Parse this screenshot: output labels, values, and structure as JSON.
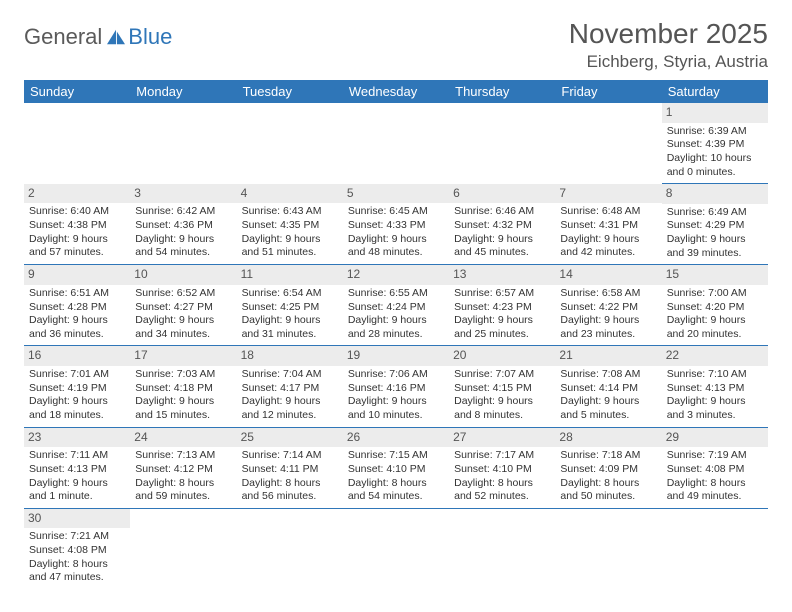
{
  "logo": {
    "text_a": "General",
    "text_b": "Blue"
  },
  "title": "November 2025",
  "location": "Eichberg, Styria, Austria",
  "colors": {
    "header_bg": "#2f76b8",
    "header_text": "#ffffff",
    "daynum_bg": "#ececec",
    "rule": "#2f76b8",
    "body_text": "#333333",
    "title_text": "#555555"
  },
  "weekdays": [
    "Sunday",
    "Monday",
    "Tuesday",
    "Wednesday",
    "Thursday",
    "Friday",
    "Saturday"
  ],
  "days": {
    "1": {
      "sunrise": "6:39 AM",
      "sunset": "4:39 PM",
      "daylight": "10 hours and 0 minutes."
    },
    "2": {
      "sunrise": "6:40 AM",
      "sunset": "4:38 PM",
      "daylight": "9 hours and 57 minutes."
    },
    "3": {
      "sunrise": "6:42 AM",
      "sunset": "4:36 PM",
      "daylight": "9 hours and 54 minutes."
    },
    "4": {
      "sunrise": "6:43 AM",
      "sunset": "4:35 PM",
      "daylight": "9 hours and 51 minutes."
    },
    "5": {
      "sunrise": "6:45 AM",
      "sunset": "4:33 PM",
      "daylight": "9 hours and 48 minutes."
    },
    "6": {
      "sunrise": "6:46 AM",
      "sunset": "4:32 PM",
      "daylight": "9 hours and 45 minutes."
    },
    "7": {
      "sunrise": "6:48 AM",
      "sunset": "4:31 PM",
      "daylight": "9 hours and 42 minutes."
    },
    "8": {
      "sunrise": "6:49 AM",
      "sunset": "4:29 PM",
      "daylight": "9 hours and 39 minutes."
    },
    "9": {
      "sunrise": "6:51 AM",
      "sunset": "4:28 PM",
      "daylight": "9 hours and 36 minutes."
    },
    "10": {
      "sunrise": "6:52 AM",
      "sunset": "4:27 PM",
      "daylight": "9 hours and 34 minutes."
    },
    "11": {
      "sunrise": "6:54 AM",
      "sunset": "4:25 PM",
      "daylight": "9 hours and 31 minutes."
    },
    "12": {
      "sunrise": "6:55 AM",
      "sunset": "4:24 PM",
      "daylight": "9 hours and 28 minutes."
    },
    "13": {
      "sunrise": "6:57 AM",
      "sunset": "4:23 PM",
      "daylight": "9 hours and 25 minutes."
    },
    "14": {
      "sunrise": "6:58 AM",
      "sunset": "4:22 PM",
      "daylight": "9 hours and 23 minutes."
    },
    "15": {
      "sunrise": "7:00 AM",
      "sunset": "4:20 PM",
      "daylight": "9 hours and 20 minutes."
    },
    "16": {
      "sunrise": "7:01 AM",
      "sunset": "4:19 PM",
      "daylight": "9 hours and 18 minutes."
    },
    "17": {
      "sunrise": "7:03 AM",
      "sunset": "4:18 PM",
      "daylight": "9 hours and 15 minutes."
    },
    "18": {
      "sunrise": "7:04 AM",
      "sunset": "4:17 PM",
      "daylight": "9 hours and 12 minutes."
    },
    "19": {
      "sunrise": "7:06 AM",
      "sunset": "4:16 PM",
      "daylight": "9 hours and 10 minutes."
    },
    "20": {
      "sunrise": "7:07 AM",
      "sunset": "4:15 PM",
      "daylight": "9 hours and 8 minutes."
    },
    "21": {
      "sunrise": "7:08 AM",
      "sunset": "4:14 PM",
      "daylight": "9 hours and 5 minutes."
    },
    "22": {
      "sunrise": "7:10 AM",
      "sunset": "4:13 PM",
      "daylight": "9 hours and 3 minutes."
    },
    "23": {
      "sunrise": "7:11 AM",
      "sunset": "4:13 PM",
      "daylight": "9 hours and 1 minute."
    },
    "24": {
      "sunrise": "7:13 AM",
      "sunset": "4:12 PM",
      "daylight": "8 hours and 59 minutes."
    },
    "25": {
      "sunrise": "7:14 AM",
      "sunset": "4:11 PM",
      "daylight": "8 hours and 56 minutes."
    },
    "26": {
      "sunrise": "7:15 AM",
      "sunset": "4:10 PM",
      "daylight": "8 hours and 54 minutes."
    },
    "27": {
      "sunrise": "7:17 AM",
      "sunset": "4:10 PM",
      "daylight": "8 hours and 52 minutes."
    },
    "28": {
      "sunrise": "7:18 AM",
      "sunset": "4:09 PM",
      "daylight": "8 hours and 50 minutes."
    },
    "29": {
      "sunrise": "7:19 AM",
      "sunset": "4:08 PM",
      "daylight": "8 hours and 49 minutes."
    },
    "30": {
      "sunrise": "7:21 AM",
      "sunset": "4:08 PM",
      "daylight": "8 hours and 47 minutes."
    }
  },
  "labels": {
    "sunrise": "Sunrise:",
    "sunset": "Sunset:",
    "daylight": "Daylight:"
  },
  "grid": [
    [
      null,
      null,
      null,
      null,
      null,
      null,
      "1"
    ],
    [
      "2",
      "3",
      "4",
      "5",
      "6",
      "7",
      "8"
    ],
    [
      "9",
      "10",
      "11",
      "12",
      "13",
      "14",
      "15"
    ],
    [
      "16",
      "17",
      "18",
      "19",
      "20",
      "21",
      "22"
    ],
    [
      "23",
      "24",
      "25",
      "26",
      "27",
      "28",
      "29"
    ],
    [
      "30",
      null,
      null,
      null,
      null,
      null,
      null
    ]
  ]
}
